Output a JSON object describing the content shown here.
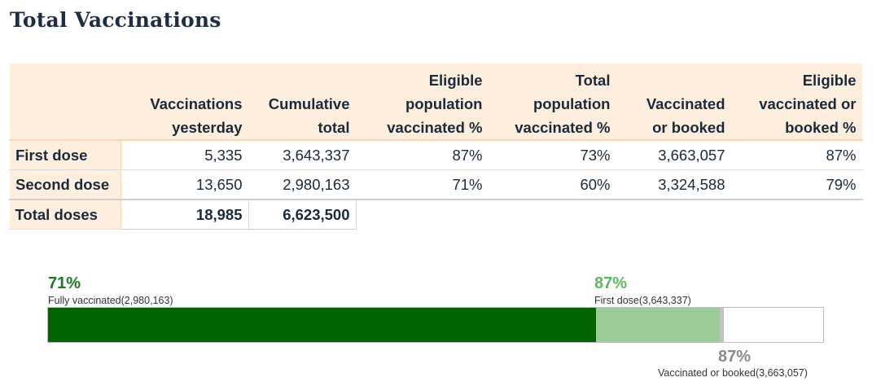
{
  "title": "Total Vaccinations",
  "table": {
    "headers": {
      "col1": [
        "Vaccinations",
        "yesterday"
      ],
      "col2": [
        "Cumulative",
        "total"
      ],
      "col3": [
        "Eligible",
        "population",
        "vaccinated %"
      ],
      "col4": [
        "Total",
        "population",
        "vaccinated %"
      ],
      "col5": [
        "Vaccinated",
        "or booked"
      ],
      "col6": [
        "Eligible",
        "vaccinated or",
        "booked %"
      ]
    },
    "rows": [
      {
        "label": "First dose",
        "cells": [
          "5,335",
          "3,643,337",
          "87%",
          "73%",
          "3,663,057",
          "87%"
        ]
      },
      {
        "label": "Second dose",
        "cells": [
          "13,650",
          "2,980,163",
          "71%",
          "60%",
          "3,324,588",
          "79%"
        ]
      }
    ],
    "total": {
      "label": "Total doses",
      "cells": [
        "18,985",
        "6,623,500"
      ]
    }
  },
  "progress": {
    "fully_vaccinated": {
      "pct_label": "71%",
      "caption": "Fully vaccinated(2,980,163)",
      "value": 0.71,
      "color": "#1e7a1e"
    },
    "first_dose": {
      "pct_label": "87%",
      "caption": "First dose(3,643,337)",
      "value": 0.87,
      "color": "#5cb85c"
    },
    "booked": {
      "pct_label": "87%",
      "caption": "Vaccinated or booked(3,663,057)",
      "value": 0.8755,
      "color": "#8a8a8a"
    },
    "colors": {
      "dark": "#006400",
      "light": "#9ccc9a",
      "grey": "#c2c2c2"
    }
  }
}
